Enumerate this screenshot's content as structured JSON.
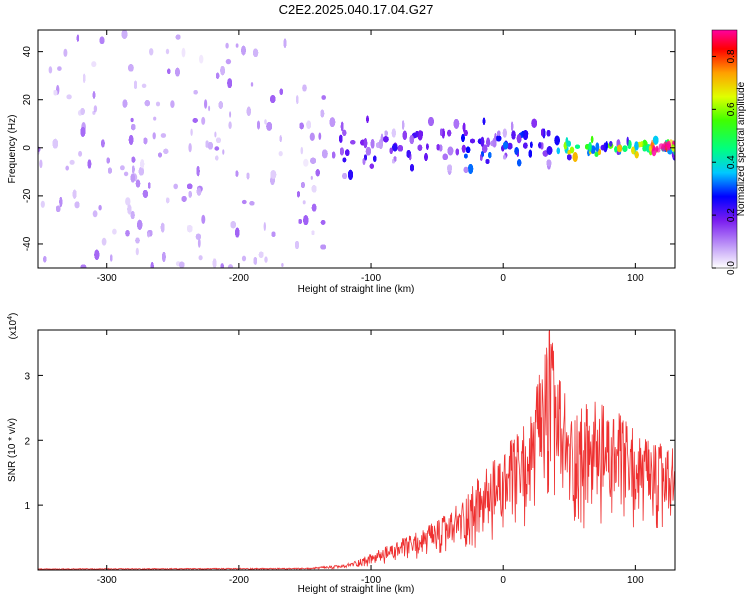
{
  "title": "C2E2.2025.040.17.04.G27",
  "chart_data": [
    {
      "type": "heatmap",
      "xlabel": "Height of straight line (km)",
      "ylabel": "Frequency (Hz)",
      "xlim": [
        -352,
        130
      ],
      "ylim": [
        -50,
        49
      ],
      "x_ticks": [
        -300,
        -200,
        -100,
        0,
        100
      ],
      "x_tick_labels": [
        "-300",
        "-200",
        "-100",
        "0",
        "100"
      ],
      "y_ticks": [
        -40,
        -20,
        0,
        20,
        40
      ],
      "y_tick_labels": [
        "-40",
        "-20",
        "0",
        "20",
        "40"
      ],
      "colorbar": {
        "label": "Normalized spectral amplitude",
        "range": [
          0,
          0.9
        ],
        "ticks": [
          0.0,
          0.2,
          0.4,
          0.6,
          0.8
        ],
        "tick_labels": [
          "0.0",
          "0.2",
          "0.4",
          "0.6",
          "0.8"
        ]
      },
      "regions": [
        {
          "x_range": [
            -352,
            -135
          ],
          "freq_range": [
            -50,
            49
          ],
          "amplitude": 0.08,
          "pattern": "broadband noise"
        },
        {
          "x_range": [
            -135,
            -40
          ],
          "freq_range": [
            -15,
            20
          ],
          "amplitude": 0.15,
          "pattern": "band"
        },
        {
          "x_range": [
            -40,
            35
          ],
          "freq_range": [
            -12,
            18
          ],
          "amplitude": 0.2,
          "pattern": "band"
        },
        {
          "x_range": [
            35,
            130
          ],
          "freq_range": [
            -5,
            6
          ],
          "amplitude": 0.45,
          "pattern": "narrow band"
        },
        {
          "x_range": [
            110,
            130
          ],
          "freq_range": [
            -2,
            3
          ],
          "amplitude": 0.85,
          "pattern": "peak"
        }
      ]
    },
    {
      "type": "line",
      "xlabel": "Height of straight line (km)",
      "ylabel": "SNR (10 * v/v)",
      "y_scale_label_base": "(x10",
      "y_scale_label_exp": "4",
      "y_scale_label_end": ")",
      "xlim": [
        -352,
        130
      ],
      "ylim": [
        0,
        3.7
      ],
      "x_ticks": [
        -300,
        -200,
        -100,
        0,
        100
      ],
      "x_tick_labels": [
        "-300",
        "-200",
        "-100",
        "0",
        "100"
      ],
      "y_ticks": [
        1,
        2,
        3
      ],
      "y_tick_labels": [
        "1",
        "2",
        "3"
      ],
      "series": [
        {
          "color": "#ee3030",
          "envelope_x": [
            -352,
            -150,
            -120,
            -100,
            -80,
            -60,
            -40,
            -20,
            0,
            20,
            35,
            50,
            70,
            90,
            110,
            130
          ],
          "envelope_y": [
            0.02,
            0.03,
            0.08,
            0.25,
            0.45,
            0.65,
            0.9,
            1.4,
            1.85,
            2.4,
            3.7,
            2.5,
            2.6,
            2.4,
            2.0,
            1.9
          ]
        }
      ]
    }
  ]
}
